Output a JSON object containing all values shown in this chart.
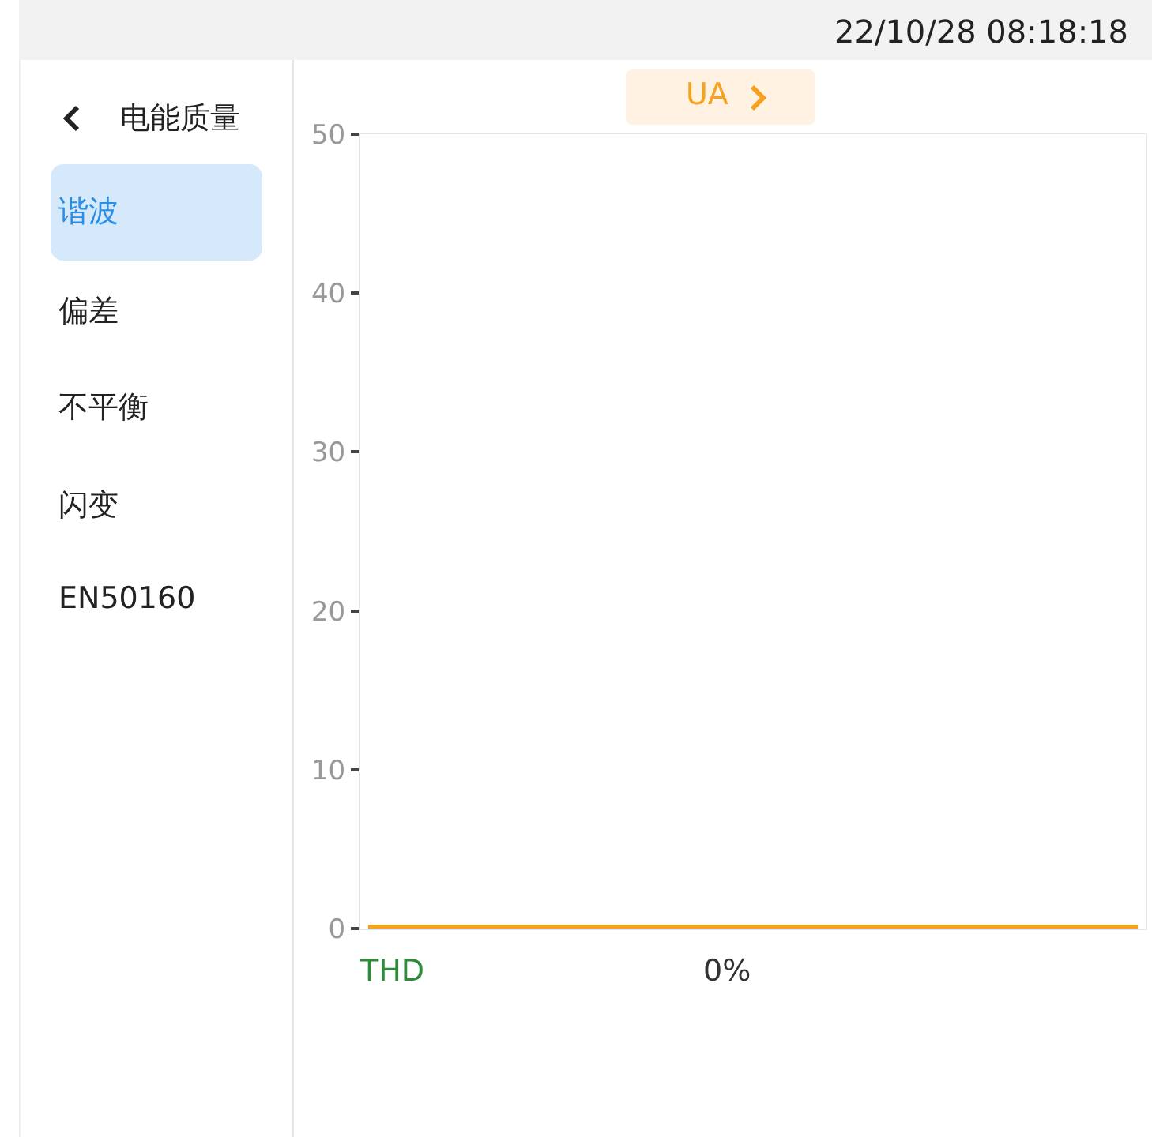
{
  "chart_data": {
    "type": "line",
    "title": "UA",
    "categories": [
      null,
      null,
      null,
      null,
      null,
      null,
      null,
      null,
      null,
      null,
      null,
      null,
      null,
      null,
      null,
      null,
      null,
      null,
      null,
      null,
      null,
      null,
      null,
      null,
      null,
      null,
      null,
      null,
      null,
      null,
      null,
      null,
      null,
      null,
      null,
      null,
      null,
      null,
      null,
      null,
      null,
      null,
      null,
      null,
      null,
      null,
      null,
      null,
      null,
      null
    ],
    "values": [
      0,
      0,
      0,
      0,
      0,
      0,
      0,
      0,
      0,
      0,
      0,
      0,
      0,
      0,
      0,
      0,
      0,
      0,
      0,
      0,
      0,
      0,
      0,
      0,
      0,
      0,
      0,
      0,
      0,
      0,
      0,
      0,
      0,
      0,
      0,
      0,
      0,
      0,
      0,
      0,
      0,
      0,
      0,
      0,
      0,
      0,
      0,
      0,
      0,
      0
    ],
    "color": "#f5a21f",
    "ylim": [
      0,
      50
    ],
    "yticks": [
      0,
      10,
      20,
      30,
      40,
      50
    ],
    "grid": false,
    "legend": false,
    "marker": "none",
    "line_style": "solid",
    "tick_labels": "y",
    "annotations": [
      "22/10/28 08:18:18",
      "电能质量",
      "谐波",
      "偏差",
      "不平衡",
      "闪变",
      "EN50160",
      "THD",
      "0%"
    ]
  }
}
